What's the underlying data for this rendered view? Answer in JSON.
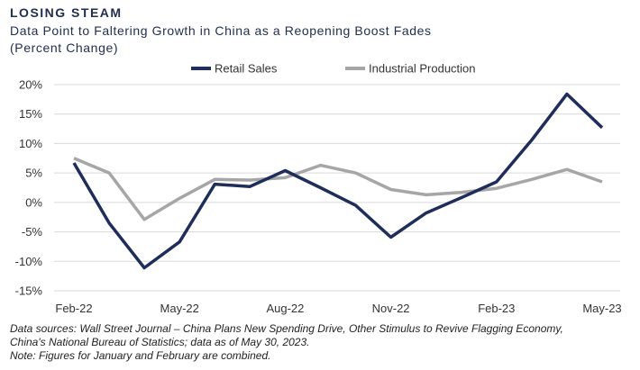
{
  "header": {
    "title": "LOSING STEAM",
    "subtitle_line1": "Data Point to Faltering Growth in China as a Reopening Boost Fades",
    "subtitle_line2": "(Percent Change)"
  },
  "footer": {
    "line1": "Data sources: Wall Street Journal – China Plans New Spending Drive, Other Stimulus to Revive Flagging Economy,",
    "line2": "China's National Bureau of Statistics; data as of May 30, 2023.",
    "line3": "Note: Figures for January and February are combined."
  },
  "chart_data": {
    "type": "line",
    "x": [
      "Feb-22",
      "Mar-22",
      "Apr-22",
      "May-22",
      "Jun-22",
      "Jul-22",
      "Aug-22",
      "Sep-22",
      "Oct-22",
      "Nov-22",
      "Dec-22",
      "Jan-23",
      "Feb-23",
      "Mar-23",
      "Apr-23",
      "May-23"
    ],
    "x_tick_labels": [
      "Feb-22",
      "May-22",
      "Aug-22",
      "Nov-22",
      "Feb-23",
      "May-23"
    ],
    "x_tick_indices": [
      0,
      3,
      6,
      9,
      12,
      15
    ],
    "series": [
      {
        "name": "Retail Sales",
        "color": "#1f2d5a",
        "values": [
          6.7,
          -3.5,
          -11.1,
          -6.7,
          3.1,
          2.7,
          5.4,
          2.5,
          -0.5,
          -5.9,
          -1.8,
          0.8,
          3.5,
          10.6,
          18.4,
          12.7
        ]
      },
      {
        "name": "Industrial Production",
        "color": "#a6a6a6",
        "values": [
          7.5,
          5.0,
          -2.9,
          0.7,
          3.9,
          3.8,
          4.2,
          6.3,
          5.0,
          2.2,
          1.3,
          1.7,
          2.4,
          3.9,
          5.6,
          3.5
        ]
      }
    ],
    "y_ticks": [
      20,
      15,
      10,
      5,
      0,
      -5,
      -10,
      -15
    ],
    "y_tick_labels": [
      "20%",
      "15%",
      "10%",
      "5%",
      "0%",
      "-5%",
      "-10%",
      "-15%"
    ],
    "ylim": [
      -15,
      20
    ],
    "grid": true,
    "legend_position": "top"
  }
}
